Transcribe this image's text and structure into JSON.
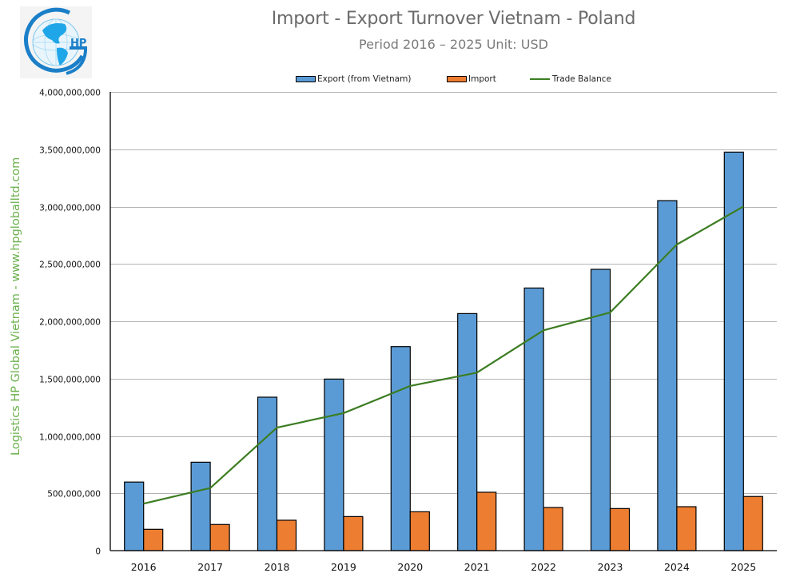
{
  "header": {
    "title": "Import - Export Turnover Vietnam - Poland",
    "subtitle": "Period 2016 – 2025  Unit: USD",
    "logo_text": "HP",
    "logo_icon": "globe-g-logo-icon"
  },
  "side_caption": "Logistics HP Global Vietnam - www.hpgloballtd.com",
  "legend": {
    "items": [
      {
        "label": "Export (from Vietnam)",
        "type": "bar",
        "color": "#5b9bd5"
      },
      {
        "label": "Import",
        "type": "bar",
        "color": "#ed7d31"
      },
      {
        "label": "Trade Balance",
        "type": "line",
        "color": "#3c7d22"
      }
    ]
  },
  "colors": {
    "export": "#5b9bd5",
    "import": "#ed7d31",
    "trade_balance": "#3c7d22",
    "caption": "#6ab04c",
    "gridline": "#b4b4b4",
    "title": "#6b6b6b",
    "logo": "#1a8fd6"
  },
  "chart_data": {
    "type": "bar",
    "title": "Import - Export Turnover Vietnam - Poland",
    "subtitle": "Period 2016 – 2025  Unit: USD",
    "xlabel": "",
    "ylabel": "",
    "categories": [
      "2016",
      "2017",
      "2018",
      "2019",
      "2020",
      "2021",
      "2022",
      "2023",
      "2024",
      "2025"
    ],
    "series": [
      {
        "name": "Export (from Vietnam)",
        "type": "bar",
        "color": "#5b9bd5",
        "values": [
          598000000,
          771000000,
          1338000000,
          1496000000,
          1779000000,
          2067000000,
          2290000000,
          2453000000,
          3052000000,
          3475000000
        ]
      },
      {
        "name": "Import",
        "type": "bar",
        "color": "#ed7d31",
        "values": [
          186000000,
          228000000,
          265000000,
          297000000,
          339000000,
          509000000,
          376000000,
          367000000,
          383000000,
          472000000
        ]
      },
      {
        "name": "Trade Balance",
        "type": "line",
        "color": "#3c7d22",
        "values": [
          410000000,
          546000000,
          1073000000,
          1199000000,
          1436000000,
          1552000000,
          1921000000,
          2077000000,
          2669000000,
          3001000000
        ]
      }
    ],
    "ylim": [
      0,
      4000000000
    ],
    "yticks": [
      0,
      500000000,
      1000000000,
      1500000000,
      2000000000,
      2500000000,
      3000000000,
      3500000000,
      4000000000
    ],
    "ytick_labels": [
      "0",
      "500,000,000",
      "1,000,000,000",
      "1,500,000,000",
      "2,000,000,000",
      "2,500,000,000",
      "3,000,000,000",
      "3,500,000,000",
      "4,000,000,000"
    ],
    "grid": true,
    "legend_position": "top"
  }
}
